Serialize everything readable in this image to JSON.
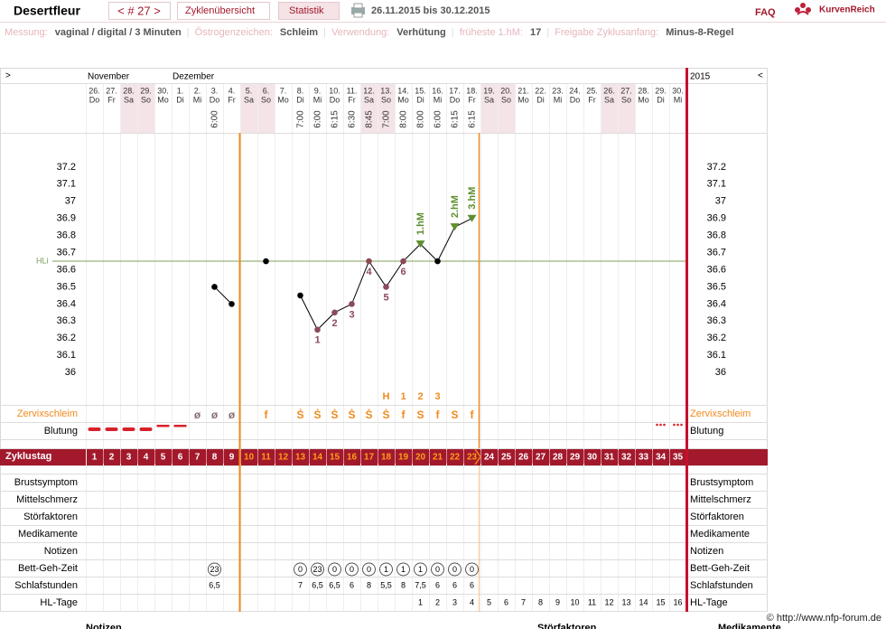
{
  "header": {
    "user": "Desertfleur",
    "cycle": "< # 27 >",
    "tabs": [
      "Zyklenübersicht",
      "Statistik"
    ],
    "period": "26.11.2015 bis 30.12.2015",
    "faq": "FAQ",
    "logo": "KurvenReich"
  },
  "info": [
    {
      "label": "Messung:",
      "value": "vaginal / digital / 3 Minuten"
    },
    {
      "label": "Östrogenzeichen:",
      "value": "Schleim"
    },
    {
      "label": "Verwendung:",
      "value": "Verhütung"
    },
    {
      "label": "früheste 1.hM:",
      "value": "17"
    },
    {
      "label": "Freigabe Zyklusanfang:",
      "value": "Minus-8-Regel"
    }
  ],
  "calendar": {
    "prev": ">",
    "next": "<",
    "months": [
      "November",
      "Dezember"
    ],
    "year": "2015"
  },
  "days": [
    [
      "26.",
      "Do"
    ],
    [
      "27.",
      "Fr"
    ],
    [
      "28.",
      "Sa"
    ],
    [
      "29.",
      "So"
    ],
    [
      "30.",
      "Mo"
    ],
    [
      "1.",
      "Di"
    ],
    [
      "2.",
      "Mi"
    ],
    [
      "3.",
      "Do"
    ],
    [
      "4.",
      "Fr"
    ],
    [
      "5.",
      "Sa"
    ],
    [
      "6.",
      "So"
    ],
    [
      "7.",
      "Mo"
    ],
    [
      "8.",
      "Di"
    ],
    [
      "9.",
      "Mi"
    ],
    [
      "10.",
      "Do"
    ],
    [
      "11.",
      "Fr"
    ],
    [
      "12.",
      "Sa"
    ],
    [
      "13.",
      "So"
    ],
    [
      "14.",
      "Mo"
    ],
    [
      "15.",
      "Di"
    ],
    [
      "16.",
      "Mi"
    ],
    [
      "17.",
      "Do"
    ],
    [
      "18.",
      "Fr"
    ],
    [
      "19.",
      "Sa"
    ],
    [
      "20.",
      "So"
    ],
    [
      "21.",
      "Mo"
    ],
    [
      "22.",
      "Di"
    ],
    [
      "23.",
      "Mi"
    ],
    [
      "24.",
      "Do"
    ],
    [
      "25.",
      "Fr"
    ],
    [
      "26.",
      "Sa"
    ],
    [
      "27.",
      "So"
    ],
    [
      "28.",
      "Mo"
    ],
    [
      "29.",
      "Di"
    ],
    [
      "30.",
      "Mi"
    ]
  ],
  "times": [
    null,
    null,
    null,
    null,
    null,
    null,
    null,
    "6:00",
    null,
    null,
    null,
    null,
    "7:00",
    "6:00",
    "6:15",
    "6:30",
    "8:45",
    "7:00",
    "8:00",
    "8:00",
    "6:00",
    "6:15",
    "6:15",
    null,
    null,
    null,
    null,
    null,
    null,
    null,
    null,
    null,
    null,
    null,
    null
  ],
  "chart_data": {
    "type": "line",
    "ylim": [
      35.8,
      37.4
    ],
    "yticks": [
      36,
      36.1,
      36.2,
      36.3,
      36.4,
      36.5,
      36.6,
      36.7,
      36.8,
      36.9,
      37,
      37.1,
      37.2
    ],
    "grid": false,
    "hl_line": {
      "label": "HLi",
      "value": 36.65,
      "color": "#7f9f5a"
    },
    "series": [
      {
        "color": "#000000",
        "values": [
          null,
          null,
          null,
          null,
          null,
          null,
          null,
          36.5,
          36.4,
          null,
          36.65,
          null,
          36.45,
          36.25,
          36.35,
          36.4,
          36.65,
          36.5,
          36.65,
          36.75,
          36.65,
          36.85,
          36.9,
          null,
          null,
          null,
          null,
          null,
          null,
          null,
          null,
          null,
          null,
          null,
          null
        ],
        "point_colors": [
          null,
          null,
          null,
          null,
          null,
          null,
          null,
          "#000000",
          "#000000",
          null,
          "#000000",
          null,
          "#000000",
          "#8b4a5a",
          "#8b4a5a",
          "#8b4a5a",
          "#8b4a5a",
          "#8b4a5a",
          "#8b4a5a",
          "#5e8f2e",
          "#000000",
          "#5e8f2e",
          "#5e8f2e",
          null,
          null,
          null,
          null,
          null,
          null,
          null,
          null,
          null,
          null,
          null,
          null
        ],
        "point_shapes": [
          null,
          null,
          null,
          null,
          null,
          null,
          null,
          "circle",
          "circle",
          null,
          "circle",
          null,
          "circle",
          "circle",
          "circle",
          "circle",
          "circle",
          "circle",
          "circle",
          "triangle",
          "circle",
          "triangle",
          "triangle",
          null,
          null,
          null,
          null,
          null,
          null,
          null,
          null,
          null,
          null,
          null,
          null
        ],
        "point_labels": [
          null,
          null,
          null,
          null,
          null,
          null,
          null,
          null,
          null,
          null,
          null,
          null,
          null,
          "1",
          "2",
          "3",
          "4",
          "5",
          "6",
          "1.hM",
          null,
          "2.hM",
          "3.hM",
          null,
          null,
          null,
          null,
          null,
          null,
          null,
          null,
          null,
          null,
          null,
          null
        ]
      }
    ]
  },
  "rows": {
    "left_labels": [
      "Zervixschleim",
      "Blutung",
      "Zyklustag",
      "Brustsymptom",
      "Mittelschmerz",
      "Störfaktoren",
      "Medikamente",
      "Notizen",
      "Bett-Geh-Zeit",
      "Schlafstunden",
      "HL-Tage"
    ],
    "right_labels": [
      "Zervixschleim",
      "Blutung",
      "Brustsymptom",
      "Mittelschmerz",
      "Störfaktoren",
      "Medikamente",
      "Notizen",
      "Bett-Geh-Zeit",
      "Schlafstunden",
      "HL-Tage"
    ],
    "zervix_peak": [
      null,
      null,
      null,
      null,
      null,
      null,
      null,
      null,
      null,
      null,
      null,
      null,
      null,
      null,
      null,
      null,
      null,
      "H",
      "1",
      "2",
      "3",
      null,
      null,
      null,
      null,
      null,
      null,
      null,
      null,
      null,
      null,
      null,
      null,
      null,
      null
    ],
    "zervix": [
      null,
      null,
      null,
      null,
      null,
      null,
      {
        "text": "ø",
        "color": "#8a7070"
      },
      {
        "text": "ø",
        "color": "#8a7070"
      },
      {
        "text": "ø",
        "color": "#8a7070"
      },
      null,
      {
        "text": "f",
        "color": "#f08a1c"
      },
      null,
      {
        "text": "Ṡ",
        "color": "#f08a1c"
      },
      {
        "text": "Ṡ",
        "color": "#f08a1c"
      },
      {
        "text": "Ṡ",
        "color": "#f08a1c"
      },
      {
        "text": "Ṡ",
        "color": "#f08a1c"
      },
      {
        "text": "Ṡ",
        "color": "#f08a1c"
      },
      {
        "text": "Ṡ",
        "color": "#f08a1c"
      },
      {
        "text": "f",
        "color": "#f08a1c"
      },
      {
        "text": "S",
        "color": "#f08a1c"
      },
      {
        "text": "f",
        "color": "#f08a1c"
      },
      {
        "text": "S",
        "color": "#f08a1c"
      },
      {
        "text": "f",
        "color": "#f08a1c"
      },
      null,
      null,
      null,
      null,
      null,
      null,
      null,
      null,
      null,
      null,
      null,
      null
    ],
    "zyklustag": [
      1,
      2,
      3,
      4,
      5,
      6,
      7,
      8,
      9,
      10,
      11,
      12,
      13,
      14,
      15,
      16,
      17,
      18,
      19,
      20,
      21,
      22,
      23,
      24,
      25,
      26,
      27,
      28,
      29,
      30,
      31,
      32,
      33,
      34,
      35
    ],
    "bett_geh_zeit": [
      null,
      null,
      null,
      null,
      null,
      null,
      null,
      "23",
      null,
      null,
      null,
      null,
      "0",
      "23",
      "0",
      "0",
      "0",
      "1",
      "1",
      "1",
      "0",
      "0",
      "0",
      null,
      null,
      null,
      null,
      null,
      null,
      null,
      null,
      null,
      null,
      null,
      null
    ],
    "schlafstunden": [
      null,
      null,
      null,
      null,
      null,
      null,
      null,
      "6,5",
      null,
      null,
      null,
      null,
      "7",
      "6,5",
      "6,5",
      "6",
      "8",
      "5,5",
      "8",
      "7,5",
      "6",
      "6",
      "6",
      null,
      null,
      null,
      null,
      null,
      null,
      null,
      null,
      null,
      null,
      null,
      null
    ],
    "hl_tage": [
      null,
      null,
      null,
      null,
      null,
      null,
      null,
      null,
      null,
      null,
      null,
      null,
      null,
      null,
      null,
      null,
      null,
      null,
      null,
      1,
      2,
      3,
      4,
      5,
      6,
      7,
      8,
      9,
      10,
      11,
      12,
      13,
      14,
      15,
      16
    ]
  },
  "footer": {
    "copyright": "© http://www.nfp-forum.de",
    "sections": [
      "Notizen",
      "Störfaktoren",
      "Medikamente"
    ]
  }
}
